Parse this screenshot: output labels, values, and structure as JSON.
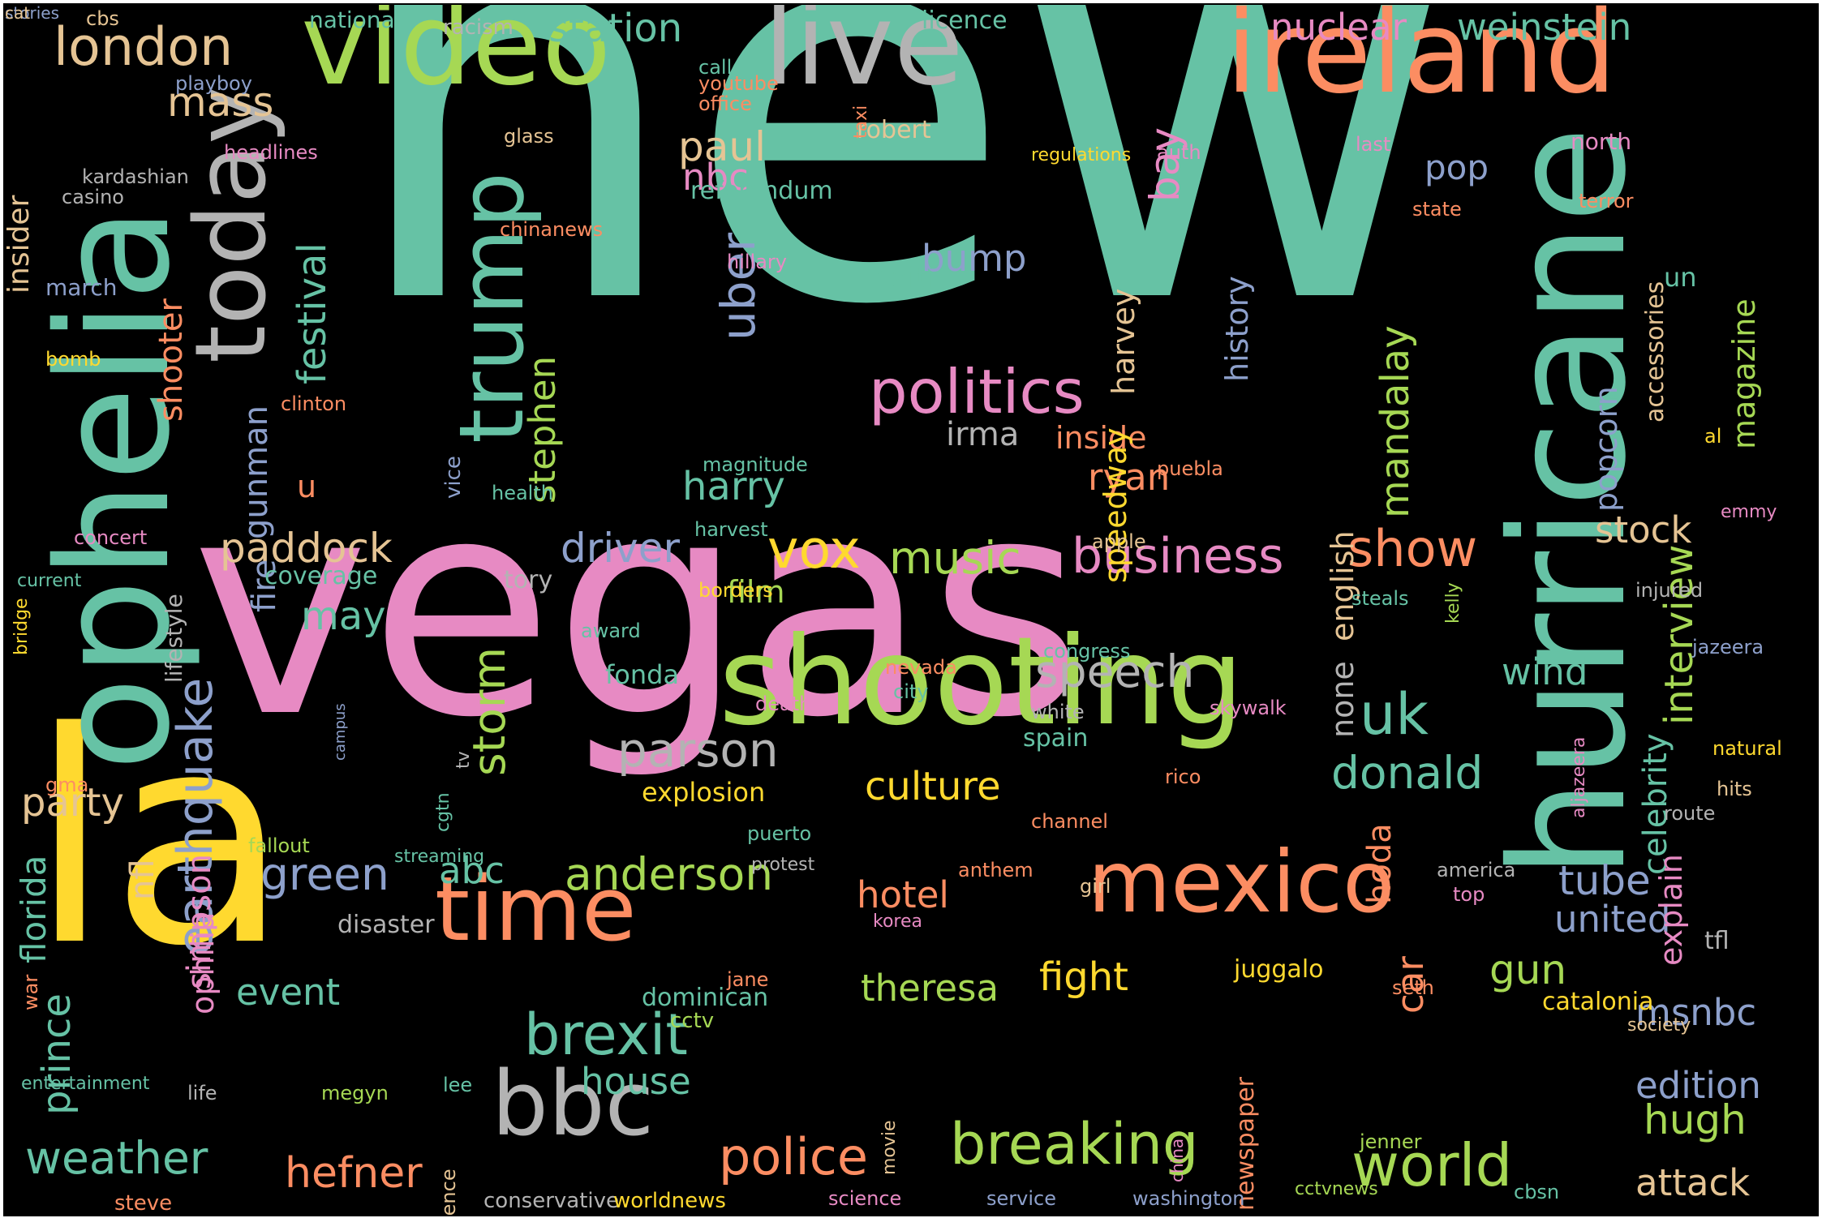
{
  "background": "#000000",
  "palette": {
    "teal": "#66c2a5",
    "orange": "#fc8d62",
    "blue": "#8da0cb",
    "pink": "#e78ac3",
    "green": "#a6d854",
    "yellow": "#ffd92f",
    "tan": "#e5c494",
    "gray": "#b3b3b3"
  },
  "words": [
    {
      "text": "new",
      "color": "teal"
    },
    {
      "text": "vegas",
      "color": "pink"
    },
    {
      "text": "la",
      "color": "yellow"
    },
    {
      "text": "shooting",
      "color": "green"
    },
    {
      "text": "ophelia",
      "color": "teal"
    },
    {
      "text": "hurricane",
      "color": "teal"
    },
    {
      "text": "ireland",
      "color": "orange"
    },
    {
      "text": "video",
      "color": "green"
    },
    {
      "text": "live",
      "color": "gray"
    },
    {
      "text": "today",
      "color": "gray"
    },
    {
      "text": "trump",
      "color": "teal"
    },
    {
      "text": "time",
      "color": "orange"
    },
    {
      "text": "mexico",
      "color": "orange"
    },
    {
      "text": "bbc",
      "color": "gray"
    },
    {
      "text": "politics",
      "color": "pink"
    },
    {
      "text": "breaking",
      "color": "green"
    },
    {
      "text": "earthquake",
      "color": "blue"
    },
    {
      "text": "london",
      "color": "tan"
    },
    {
      "text": "brexit",
      "color": "teal"
    },
    {
      "text": "world",
      "color": "green"
    },
    {
      "text": "police",
      "color": "orange"
    },
    {
      "text": "business",
      "color": "pink"
    },
    {
      "text": "weather",
      "color": "teal"
    },
    {
      "text": "show",
      "color": "orange"
    },
    {
      "text": "uber",
      "color": "blue"
    },
    {
      "text": "storm",
      "color": "green"
    },
    {
      "text": "parson",
      "color": "gray"
    },
    {
      "text": "donald",
      "color": "teal"
    },
    {
      "text": "anderson",
      "color": "green"
    },
    {
      "text": "uk",
      "color": "teal"
    },
    {
      "text": "speech",
      "color": "gray"
    },
    {
      "text": "green",
      "color": "blue"
    },
    {
      "text": "vox",
      "color": "yellow"
    },
    {
      "text": "music",
      "color": "green"
    },
    {
      "text": "paddock",
      "color": "tan"
    },
    {
      "text": "hefner",
      "color": "orange"
    },
    {
      "text": "mass",
      "color": "tan"
    },
    {
      "text": "station",
      "color": "teal"
    },
    {
      "text": "nuclear",
      "color": "pink"
    },
    {
      "text": "weinstein",
      "color": "teal"
    },
    {
      "text": "paul",
      "color": "tan"
    },
    {
      "text": "culture",
      "color": "yellow"
    },
    {
      "text": "fight",
      "color": "yellow"
    },
    {
      "text": "theresa",
      "color": "green"
    },
    {
      "text": "hugh",
      "color": "green"
    },
    {
      "text": "attack",
      "color": "tan"
    },
    {
      "text": "festival",
      "color": "teal"
    },
    {
      "text": "stephen",
      "color": "green"
    },
    {
      "text": "interview",
      "color": "green"
    },
    {
      "text": "mandalay",
      "color": "green"
    },
    {
      "text": "driver",
      "color": "blue"
    },
    {
      "text": "harry",
      "color": "teal"
    },
    {
      "text": "ryan",
      "color": "orange"
    },
    {
      "text": "party",
      "color": "tan"
    },
    {
      "text": "prince",
      "color": "teal"
    },
    {
      "text": "house",
      "color": "teal"
    },
    {
      "text": "gun",
      "color": "green"
    },
    {
      "text": "tube",
      "color": "blue"
    },
    {
      "text": "united",
      "color": "blue"
    },
    {
      "text": "stock",
      "color": "tan"
    },
    {
      "text": "wind",
      "color": "teal"
    },
    {
      "text": "msnbc",
      "color": "blue"
    },
    {
      "text": "edition",
      "color": "blue"
    },
    {
      "text": "hotel",
      "color": "orange"
    },
    {
      "text": "event",
      "color": "teal"
    },
    {
      "text": "abc",
      "color": "teal"
    },
    {
      "text": "may",
      "color": "teal"
    },
    {
      "text": "nbc",
      "color": "pink"
    },
    {
      "text": "irma",
      "color": "gray"
    },
    {
      "text": "inside",
      "color": "orange"
    },
    {
      "text": "bump",
      "color": "blue"
    },
    {
      "text": "pop",
      "color": "blue"
    },
    {
      "text": "bay",
      "color": "pink"
    },
    {
      "text": "speedway",
      "color": "yellow"
    },
    {
      "text": "harvey",
      "color": "tan"
    },
    {
      "text": "history",
      "color": "blue"
    },
    {
      "text": "english",
      "color": "tan"
    },
    {
      "text": "popcorn",
      "color": "blue"
    },
    {
      "text": "magazine",
      "color": "green"
    },
    {
      "text": "accessories",
      "color": "tan"
    },
    {
      "text": "un",
      "color": "teal"
    },
    {
      "text": "celebrity",
      "color": "teal"
    },
    {
      "text": "explain",
      "color": "pink"
    },
    {
      "text": "simpson",
      "color": "pink"
    },
    {
      "text": "ophilia",
      "color": "pink"
    },
    {
      "text": "nfl",
      "color": "tan"
    },
    {
      "text": "florida",
      "color": "teal"
    },
    {
      "text": "fire",
      "color": "blue"
    },
    {
      "text": "gunman",
      "color": "blue"
    },
    {
      "text": "shooter",
      "color": "orange"
    },
    {
      "text": "u",
      "color": "orange"
    },
    {
      "text": "insider",
      "color": "tan"
    },
    {
      "text": "film",
      "color": "green"
    },
    {
      "text": "coverage",
      "color": "teal"
    },
    {
      "text": "tory",
      "color": "gray"
    },
    {
      "text": "car",
      "color": "orange"
    },
    {
      "text": "hoda",
      "color": "orange"
    },
    {
      "text": "none",
      "color": "gray"
    },
    {
      "text": "juggalo",
      "color": "yellow"
    },
    {
      "text": "dominican",
      "color": "teal"
    },
    {
      "text": "catalonia",
      "color": "yellow"
    },
    {
      "text": "tfl",
      "color": "gray"
    },
    {
      "text": "disaster",
      "color": "gray"
    },
    {
      "text": "newspaper",
      "color": "orange"
    },
    {
      "text": "fonda",
      "color": "teal"
    },
    {
      "text": "explosion",
      "color": "yellow"
    },
    {
      "text": "spain",
      "color": "teal"
    },
    {
      "text": "haiti",
      "color": "teal"
    },
    {
      "text": "robert",
      "color": "tan"
    },
    {
      "text": "referendum",
      "color": "teal"
    },
    {
      "text": "licence",
      "color": "teal"
    },
    {
      "text": "national",
      "color": "teal"
    },
    {
      "text": "cbs",
      "color": "tan"
    },
    {
      "text": "racism",
      "color": "gray"
    },
    {
      "text": "call",
      "color": "teal"
    },
    {
      "text": "youtube",
      "color": "orange"
    },
    {
      "text": "office",
      "color": "orange"
    },
    {
      "text": "taxi",
      "color": "orange"
    },
    {
      "text": "playboy",
      "color": "blue"
    },
    {
      "text": "headlines",
      "color": "pink"
    },
    {
      "text": "glass",
      "color": "tan"
    },
    {
      "text": "kardashian",
      "color": "gray"
    },
    {
      "text": "casino",
      "color": "gray"
    },
    {
      "text": "march",
      "color": "blue"
    },
    {
      "text": "bomb",
      "color": "yellow"
    },
    {
      "text": "clinton",
      "color": "orange"
    },
    {
      "text": "bridge",
      "color": "yellow"
    },
    {
      "text": "lifestyle",
      "color": "gray"
    },
    {
      "text": "concert",
      "color": "pink"
    },
    {
      "text": "current",
      "color": "teal"
    },
    {
      "text": "chinanews",
      "color": "orange"
    },
    {
      "text": "hillary",
      "color": "pink"
    },
    {
      "text": "vice",
      "color": "blue"
    },
    {
      "text": "magnitude",
      "color": "teal"
    },
    {
      "text": "health",
      "color": "teal"
    },
    {
      "text": "harvest",
      "color": "teal"
    },
    {
      "text": "borders",
      "color": "yellow"
    },
    {
      "text": "award",
      "color": "teal"
    },
    {
      "text": "campus",
      "color": "blue"
    },
    {
      "text": "gma",
      "color": "orange"
    },
    {
      "text": "fallout",
      "color": "green"
    },
    {
      "text": "war",
      "color": "orange"
    },
    {
      "text": "streaming",
      "color": "teal"
    },
    {
      "text": "cgtn",
      "color": "teal"
    },
    {
      "text": "tv",
      "color": "gray"
    },
    {
      "text": "puerto",
      "color": "teal"
    },
    {
      "text": "protest",
      "color": "gray"
    },
    {
      "text": "jane",
      "color": "orange"
    },
    {
      "text": "cctv",
      "color": "green"
    },
    {
      "text": "entertainment",
      "color": "teal"
    },
    {
      "text": "life",
      "color": "gray"
    },
    {
      "text": "megyn",
      "color": "green"
    },
    {
      "text": "lee",
      "color": "teal"
    },
    {
      "text": "conference",
      "color": "tan"
    },
    {
      "text": "movie",
      "color": "tan"
    },
    {
      "text": "steve",
      "color": "orange"
    },
    {
      "text": "conservative",
      "color": "gray"
    },
    {
      "text": "worldnews",
      "color": "yellow"
    },
    {
      "text": "science",
      "color": "pink"
    },
    {
      "text": "service",
      "color": "blue"
    },
    {
      "text": "washington",
      "color": "blue"
    },
    {
      "text": "china",
      "color": "pink"
    },
    {
      "text": "jenner",
      "color": "green"
    },
    {
      "text": "cctvnews",
      "color": "green"
    },
    {
      "text": "cbsn",
      "color": "teal"
    },
    {
      "text": "korea",
      "color": "pink"
    },
    {
      "text": "anthem",
      "color": "orange"
    },
    {
      "text": "girl",
      "color": "tan"
    },
    {
      "text": "america",
      "color": "gray"
    },
    {
      "text": "top",
      "color": "pink"
    },
    {
      "text": "seth",
      "color": "orange"
    },
    {
      "text": "society",
      "color": "tan"
    },
    {
      "text": "channel",
      "color": "orange"
    },
    {
      "text": "route",
      "color": "gray"
    },
    {
      "text": "natural",
      "color": "yellow"
    },
    {
      "text": "hits",
      "color": "tan"
    },
    {
      "text": "jazeera",
      "color": "blue"
    },
    {
      "text": "aljazeera",
      "color": "pink"
    },
    {
      "text": "rico",
      "color": "orange"
    },
    {
      "text": "skywalk",
      "color": "pink"
    },
    {
      "text": "white",
      "color": "gray"
    },
    {
      "text": "congress",
      "color": "teal"
    },
    {
      "text": "nevada",
      "color": "orange"
    },
    {
      "text": "city",
      "color": "teal"
    },
    {
      "text": "death",
      "color": "pink"
    },
    {
      "text": "apple",
      "color": "tan"
    },
    {
      "text": "puebla",
      "color": "orange"
    },
    {
      "text": "steals",
      "color": "teal"
    },
    {
      "text": "injured",
      "color": "gray"
    },
    {
      "text": "emmy",
      "color": "pink"
    },
    {
      "text": "al",
      "color": "yellow"
    },
    {
      "text": "kelly",
      "color": "green"
    },
    {
      "text": "state",
      "color": "orange"
    },
    {
      "text": "terror",
      "color": "orange"
    },
    {
      "text": "north",
      "color": "pink"
    },
    {
      "text": "last",
      "color": "pink"
    },
    {
      "text": "auth",
      "color": "pink"
    },
    {
      "text": "regulations",
      "color": "yellow"
    },
    {
      "text": "stories",
      "color": "blue"
    },
    {
      "text": "cat",
      "color": "tan"
    }
  ]
}
